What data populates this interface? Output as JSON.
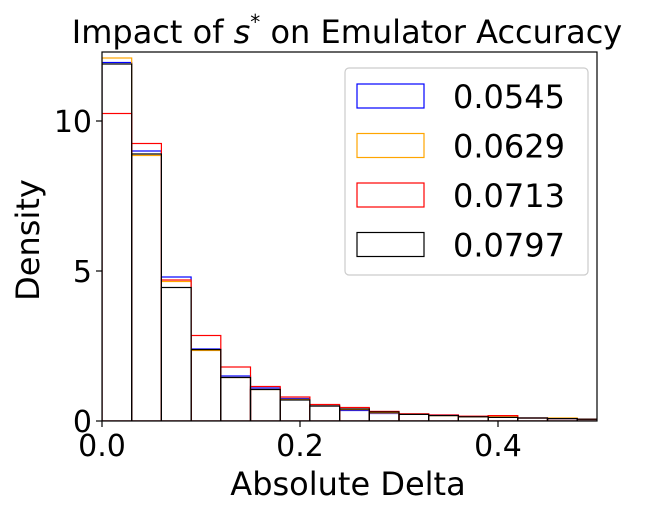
{
  "chart_data": {
    "type": "histogram",
    "title": "Impact of s* on Emulator Accuracy",
    "title_parts": {
      "prefix": "Impact of ",
      "symbol": "s",
      "sup": "*",
      "suffix": " on Emulator Accuracy"
    },
    "xlabel": "Absolute Delta",
    "ylabel": "Density",
    "xlim": [
      0.0,
      0.5
    ],
    "ylim": [
      0,
      12.3
    ],
    "x_ticks": [
      {
        "value": 0.0,
        "label": "0.0"
      },
      {
        "value": 0.2,
        "label": "0.2"
      },
      {
        "value": 0.4,
        "label": "0.4"
      }
    ],
    "y_ticks": [
      {
        "value": 0,
        "label": "0"
      },
      {
        "value": 5,
        "label": "5"
      },
      {
        "value": 10,
        "label": "10"
      }
    ],
    "grid": false,
    "legend_position": "top-right",
    "bin_edges": [
      0.0,
      0.03,
      0.06,
      0.09,
      0.12,
      0.15,
      0.18,
      0.21,
      0.24,
      0.27,
      0.3,
      0.33,
      0.36,
      0.39,
      0.42,
      0.45,
      0.48,
      0.51
    ],
    "series": [
      {
        "name": "0.0545",
        "color": "#0000ff",
        "values": [
          11.95,
          9.0,
          4.8,
          2.4,
          1.5,
          1.1,
          0.75,
          0.5,
          0.35,
          0.25,
          0.22,
          0.2,
          0.15,
          0.12,
          0.1,
          0.08,
          0.06
        ]
      },
      {
        "name": "0.0629",
        "color": "#ffa500",
        "values": [
          12.1,
          8.85,
          4.65,
          2.35,
          1.45,
          1.05,
          0.72,
          0.5,
          0.38,
          0.27,
          0.22,
          0.18,
          0.14,
          0.14,
          0.1,
          0.1,
          0.06
        ]
      },
      {
        "name": "0.0713",
        "color": "#ff0000",
        "values": [
          10.25,
          9.25,
          4.7,
          2.85,
          1.8,
          1.15,
          0.8,
          0.55,
          0.45,
          0.32,
          0.24,
          0.2,
          0.16,
          0.18,
          0.1,
          0.08,
          0.06
        ]
      },
      {
        "name": "0.0797",
        "color": "#000000",
        "values": [
          11.9,
          8.9,
          4.45,
          2.38,
          1.45,
          1.05,
          0.7,
          0.5,
          0.4,
          0.3,
          0.22,
          0.18,
          0.14,
          0.12,
          0.1,
          0.08,
          0.06
        ]
      }
    ]
  }
}
